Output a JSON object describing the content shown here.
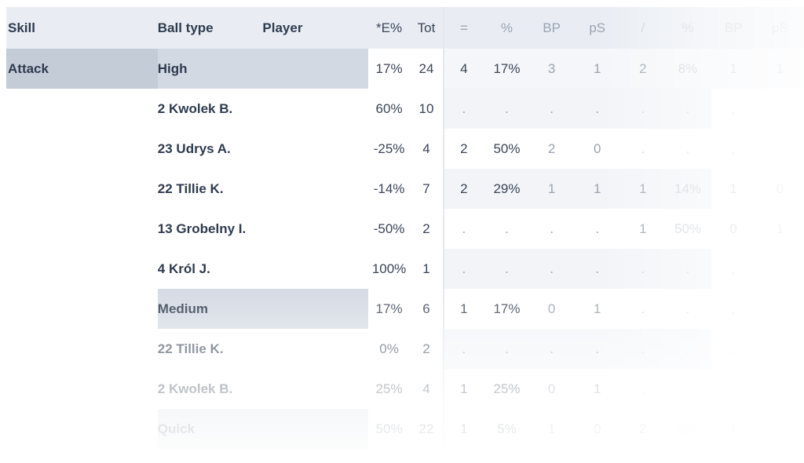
{
  "headers": [
    "Skill",
    "Ball type",
    "Player",
    "*E%",
    "Tot",
    "=",
    "%",
    "BP",
    "pS",
    "/",
    "%",
    "BP",
    "pS"
  ],
  "rows": [
    {
      "skill": "Attack",
      "ball": "High",
      "player": "",
      "e": "17%",
      "tot": "24",
      "eq": "4",
      "p1": "17%",
      "bp1": "3",
      "ps1": "1",
      "sl": "2",
      "p2": "8%",
      "bp2": "1",
      "ps2": "1"
    },
    {
      "skill": "",
      "ball": "2 Kwolek B.",
      "player": "",
      "e": "60%",
      "tot": "10",
      "eq": ".",
      "p1": ".",
      "bp1": ".",
      "ps1": ".",
      "sl": ".",
      "p2": ".",
      "bp2": ".",
      "ps2": ""
    },
    {
      "skill": "",
      "ball": "23 Udrys A.",
      "player": "",
      "e": "-25%",
      "tot": "4",
      "eq": "2",
      "p1": "50%",
      "bp1": "2",
      "ps1": "0",
      "sl": ".",
      "p2": ".",
      "bp2": ".",
      "ps2": ""
    },
    {
      "skill": "",
      "ball": "22 Tillie K.",
      "player": "",
      "e": "-14%",
      "tot": "7",
      "eq": "2",
      "p1": "29%",
      "bp1": "1",
      "ps1": "1",
      "sl": "1",
      "p2": "14%",
      "bp2": "1",
      "ps2": "0"
    },
    {
      "skill": "",
      "ball": "13 Grobelny I.",
      "player": "",
      "e": "-50%",
      "tot": "2",
      "eq": ".",
      "p1": ".",
      "bp1": ".",
      "ps1": ".",
      "sl": "1",
      "p2": "50%",
      "bp2": "0",
      "ps2": "1"
    },
    {
      "skill": "",
      "ball": "4 Król J.",
      "player": "",
      "e": "100%",
      "tot": "1",
      "eq": ".",
      "p1": ".",
      "bp1": ".",
      "ps1": ".",
      "sl": ".",
      "p2": ".",
      "bp2": ".",
      "ps2": ""
    },
    {
      "skill": "",
      "ball": "Medium",
      "player": "",
      "e": "17%",
      "tot": "6",
      "eq": "1",
      "p1": "17%",
      "bp1": "0",
      "ps1": "1",
      "sl": ".",
      "p2": ".",
      "bp2": ".",
      "ps2": ""
    },
    {
      "skill": "",
      "ball": "22 Tillie K.",
      "player": "",
      "e": "0%",
      "tot": "2",
      "eq": ".",
      "p1": ".",
      "bp1": ".",
      "ps1": ".",
      "sl": ".",
      "p2": ".",
      "bp2": ".",
      "ps2": ""
    },
    {
      "skill": "",
      "ball": "2 Kwolek B.",
      "player": "",
      "e": "25%",
      "tot": "4",
      "eq": "1",
      "p1": "25%",
      "bp1": "0",
      "ps1": "1",
      "sl": ".",
      "p2": ".",
      "bp2": "",
      "ps2": ""
    },
    {
      "skill": "",
      "ball": "Quick",
      "player": "",
      "e": "50%",
      "tot": "22",
      "eq": "1",
      "p1": "5%",
      "bp1": "1",
      "ps1": "0",
      "sl": "2",
      "p2": "9%",
      "bp2": "1",
      "ps2": ""
    }
  ]
}
